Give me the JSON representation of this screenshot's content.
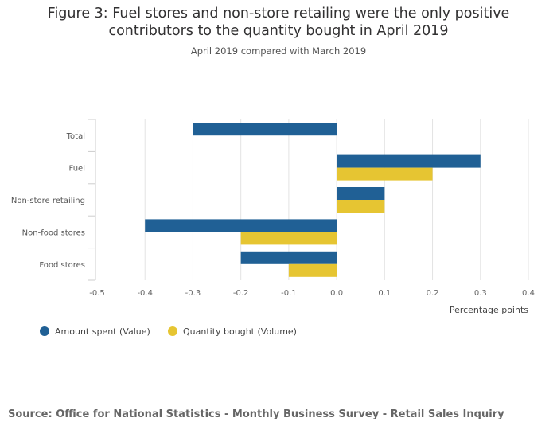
{
  "title": {
    "line1": "Figure 3: Fuel stores and non-store retailing were the only positive",
    "line2": "contributors to the quantity bought in April 2019"
  },
  "subtitle": "April 2019 compared with March 2019",
  "source": "Source: Office for National Statistics - Monthly Business Survey - Retail Sales Inquiry",
  "chart_data": {
    "type": "bar",
    "orientation": "horizontal",
    "categories": [
      "Total",
      "Fuel",
      "Non-store retailing",
      "Non-food stores",
      "Food stores"
    ],
    "series": [
      {
        "name": "Amount spent (Value)",
        "color": "#206095",
        "values": [
          -0.3,
          0.3,
          0.1,
          -0.4,
          -0.2
        ]
      },
      {
        "name": "Quantity bought (Volume)",
        "color": "#e6c532",
        "values": [
          null,
          0.2,
          0.1,
          -0.2,
          -0.1
        ]
      }
    ],
    "xlim": [
      -0.5,
      0.4
    ],
    "xticks": [
      "-0.5",
      "-0.4",
      "-0.3",
      "-0.2",
      "-0.1",
      "0.0",
      "0.1",
      "0.2",
      "0.3",
      "0.4"
    ],
    "xlabel": "Percentage points",
    "ylabel": "",
    "grid": true,
    "legend": "bottom-left"
  }
}
